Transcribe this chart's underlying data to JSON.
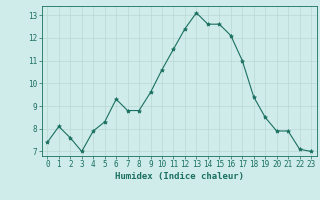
{
  "x": [
    0,
    1,
    2,
    3,
    4,
    5,
    6,
    7,
    8,
    9,
    10,
    11,
    12,
    13,
    14,
    15,
    16,
    17,
    18,
    19,
    20,
    21,
    22,
    23
  ],
  "y": [
    7.4,
    8.1,
    7.6,
    7.0,
    7.9,
    8.3,
    9.3,
    8.8,
    8.8,
    9.6,
    10.6,
    11.5,
    12.4,
    13.1,
    12.6,
    12.6,
    12.1,
    11.0,
    9.4,
    8.5,
    7.9,
    7.9,
    7.1,
    7.0
  ],
  "line_color": "#1a7060",
  "marker": "*",
  "marker_size": 3,
  "bg_color": "#d0ecea",
  "grid_color": "#b8d8d4",
  "xlabel": "Humidex (Indice chaleur)",
  "xlim": [
    -0.5,
    23.5
  ],
  "ylim": [
    6.8,
    13.4
  ],
  "yticks": [
    7,
    8,
    9,
    10,
    11,
    12,
    13
  ],
  "xticks": [
    0,
    1,
    2,
    3,
    4,
    5,
    6,
    7,
    8,
    9,
    10,
    11,
    12,
    13,
    14,
    15,
    16,
    17,
    18,
    19,
    20,
    21,
    22,
    23
  ],
  "tick_fontsize": 5.5,
  "label_fontsize": 6.5
}
